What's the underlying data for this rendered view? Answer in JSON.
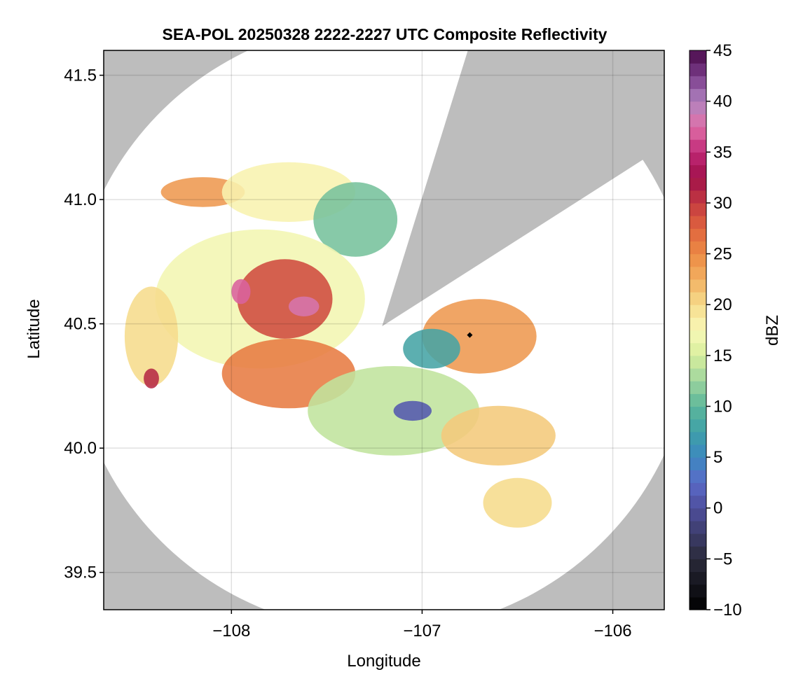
{
  "chart_data": {
    "type": "heatmap",
    "title": "SEA-POL 20250328 2222-2227 UTC Composite Reflectivity",
    "xlabel": "Longitude",
    "ylabel": "Latitude",
    "xlim": [
      -108.67,
      -105.73
    ],
    "ylim": [
      39.35,
      41.6
    ],
    "xticks": [
      -108,
      -107,
      -106
    ],
    "xtick_labels": [
      "−108",
      "−107",
      "−106"
    ],
    "yticks": [
      39.5,
      40.0,
      40.5,
      41.0,
      41.5
    ],
    "ytick_labels": [
      "39.5",
      "40.0",
      "40.5",
      "41.0",
      "41.5"
    ],
    "grid": true,
    "background_color": "#bdbdbd",
    "radar": {
      "center_lon": -107.21,
      "center_lat": 40.49,
      "max_range_deg_lon": 1.63,
      "max_range_deg_lat": 1.23,
      "blocked_sector_azimuths_deg": [
        [
          17,
          57
        ]
      ],
      "site_marker": {
        "lon": -106.75,
        "lat": 40.455
      }
    },
    "colorbar": {
      "label": "dBZ",
      "min": -10,
      "max": 45,
      "step": 1.25,
      "ticks": [
        -10,
        -5,
        0,
        5,
        10,
        15,
        20,
        25,
        30,
        35,
        40,
        45
      ],
      "tick_labels": [
        "−10",
        "−5",
        "0",
        "5",
        "10",
        "15",
        "20",
        "25",
        "30",
        "35",
        "40",
        "45"
      ],
      "colormap": "spectral-magenta",
      "color_stops": [
        {
          "value": -10,
          "color": "#000000"
        },
        {
          "value": -5,
          "color": "#2a2a3a"
        },
        {
          "value": 0,
          "color": "#4e4e9c"
        },
        {
          "value": 2.5,
          "color": "#5a6ac8"
        },
        {
          "value": 5,
          "color": "#3c88c0"
        },
        {
          "value": 7.5,
          "color": "#3fa0a8"
        },
        {
          "value": 10,
          "color": "#5cb69a"
        },
        {
          "value": 12.5,
          "color": "#9dd49e"
        },
        {
          "value": 15,
          "color": "#d8ee9c"
        },
        {
          "value": 17.5,
          "color": "#f8f8b8"
        },
        {
          "value": 20,
          "color": "#f6dc8c"
        },
        {
          "value": 22.5,
          "color": "#f2b061"
        },
        {
          "value": 25,
          "color": "#ec8a44"
        },
        {
          "value": 27.5,
          "color": "#e0643e"
        },
        {
          "value": 30,
          "color": "#c43a40"
        },
        {
          "value": 32.5,
          "color": "#a0104a"
        },
        {
          "value": 35,
          "color": "#c02876"
        },
        {
          "value": 37.5,
          "color": "#e070a8"
        },
        {
          "value": 40,
          "color": "#b084c0"
        },
        {
          "value": 42.5,
          "color": "#7a3c8a"
        },
        {
          "value": 45,
          "color": "#4a0a4a"
        }
      ]
    },
    "echo_regions": [
      {
        "name": "northwest-band",
        "lon": -108.15,
        "lat": 41.03,
        "rx": 0.22,
        "ry": 0.06,
        "dbz": 24
      },
      {
        "name": "north-cells",
        "lon": -107.7,
        "lat": 41.03,
        "rx": 0.35,
        "ry": 0.12,
        "dbz": 18
      },
      {
        "name": "north-central-weak",
        "lon": -107.35,
        "lat": 40.92,
        "rx": 0.22,
        "ry": 0.15,
        "dbz": 11
      },
      {
        "name": "west-main",
        "lon": -107.85,
        "lat": 40.6,
        "rx": 0.55,
        "ry": 0.28,
        "dbz": 17
      },
      {
        "name": "west-core",
        "lon": -107.72,
        "lat": 40.6,
        "rx": 0.25,
        "ry": 0.16,
        "dbz": 29
      },
      {
        "name": "west-core-peak",
        "lon": -107.62,
        "lat": 40.57,
        "rx": 0.08,
        "ry": 0.04,
        "dbz": 38
      },
      {
        "name": "west-core-peak-2",
        "lon": -107.95,
        "lat": 40.63,
        "rx": 0.05,
        "ry": 0.05,
        "dbz": 37
      },
      {
        "name": "southwest-band",
        "lon": -107.7,
        "lat": 40.3,
        "rx": 0.35,
        "ry": 0.14,
        "dbz": 26
      },
      {
        "name": "far-west-cells",
        "lon": -108.42,
        "lat": 40.45,
        "rx": 0.14,
        "ry": 0.2,
        "dbz": 20
      },
      {
        "name": "far-west-core",
        "lon": -108.42,
        "lat": 40.28,
        "rx": 0.04,
        "ry": 0.04,
        "dbz": 31
      },
      {
        "name": "south-central",
        "lon": -107.15,
        "lat": 40.15,
        "rx": 0.45,
        "ry": 0.18,
        "dbz": 14
      },
      {
        "name": "south-weak-core",
        "lon": -107.05,
        "lat": 40.15,
        "rx": 0.1,
        "ry": 0.04,
        "dbz": 1
      },
      {
        "name": "east-main",
        "lon": -106.7,
        "lat": 40.45,
        "rx": 0.3,
        "ry": 0.15,
        "dbz": 24
      },
      {
        "name": "east-weak",
        "lon": -106.95,
        "lat": 40.4,
        "rx": 0.15,
        "ry": 0.08,
        "dbz": 8
      },
      {
        "name": "southeast-cells",
        "lon": -106.6,
        "lat": 40.05,
        "rx": 0.3,
        "ry": 0.12,
        "dbz": 21
      },
      {
        "name": "far-southeast",
        "lon": -106.5,
        "lat": 39.78,
        "rx": 0.18,
        "ry": 0.1,
        "dbz": 20
      }
    ]
  }
}
